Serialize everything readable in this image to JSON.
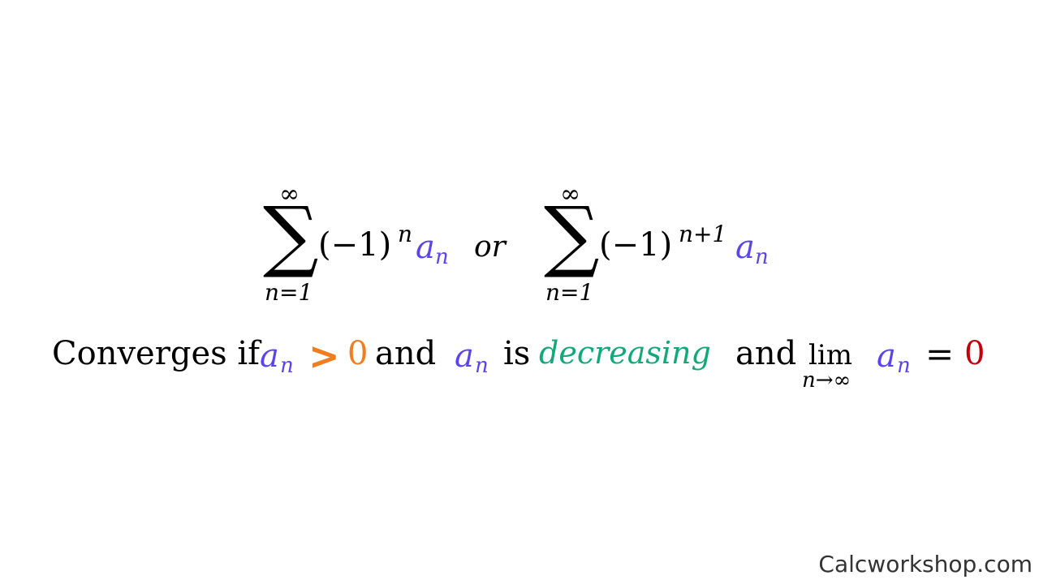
{
  "colors": {
    "an": "#5b44e8",
    "gt": "#f07d1f",
    "zero_first": "#f07d1f",
    "decreasing": "#12a97a",
    "zero_last": "#c0000a"
  },
  "series1": {
    "sigma": "∑",
    "upper": "∞",
    "lower": "n=1",
    "base": "(−1)",
    "exponent": "n",
    "term_a": "a",
    "term_sub": "n"
  },
  "connector": "or",
  "series2": {
    "sigma": "∑",
    "upper": "∞",
    "lower": "n=1",
    "base": "(−1)",
    "exponent": "n+1",
    "term_a": "a",
    "term_sub": "n"
  },
  "condition": {
    "lead": "Converges if",
    "an1_a": "a",
    "an1_sub": "n",
    "gt": ">",
    "zero1": "0",
    "and1": "and",
    "an2_a": "a",
    "an2_sub": "n",
    "is": "is",
    "decreasing": "decreasing",
    "and2": "and",
    "lim": "lim",
    "lim_sub": "n→∞",
    "an3_a": "a",
    "an3_sub": "n",
    "equals": "=",
    "zero2": "0"
  },
  "footer": "Calcworkshop.com"
}
